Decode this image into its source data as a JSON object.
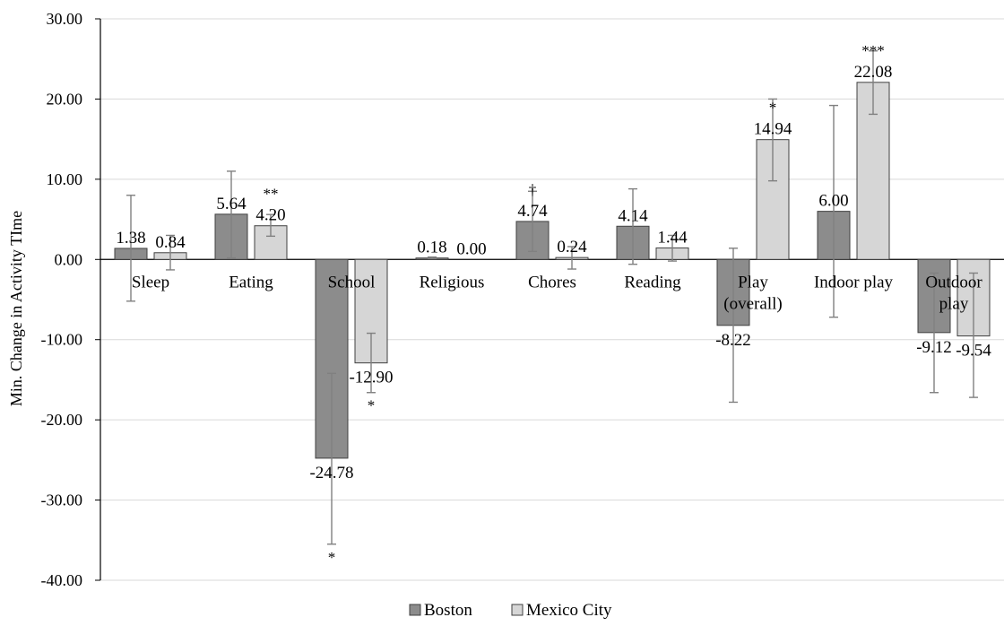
{
  "chart_data": {
    "type": "bar",
    "ylabel": "Min. Change in Activity TIme",
    "xlabel": "",
    "ylim": [
      -40,
      30
    ],
    "yticks": [
      "30.00",
      "20.00",
      "10.00",
      "0.00",
      "-10.00",
      "-20.00",
      "-30.00",
      "-40.00"
    ],
    "ytick_values": [
      30,
      20,
      10,
      0,
      -10,
      -20,
      -30,
      -40
    ],
    "grid": true,
    "legend_position": "bottom",
    "categories": [
      [
        "Sleep"
      ],
      [
        "Eating"
      ],
      [
        "School"
      ],
      [
        "Religious"
      ],
      [
        "Chores"
      ],
      [
        "Reading"
      ],
      [
        "Play",
        "(overall)"
      ],
      [
        "Indoor play"
      ],
      [
        "Outdoor",
        "play"
      ]
    ],
    "series": [
      {
        "name": "Boston",
        "color": "#8c8c8c",
        "values": [
          1.38,
          5.64,
          -24.78,
          0.18,
          4.74,
          4.14,
          -8.22,
          6.0,
          -9.12
        ],
        "labels": [
          "1.38",
          "5.64",
          "-24.78",
          "0.18",
          "4.74",
          "4.14",
          "-8.22",
          "6.00",
          "-9.12"
        ],
        "error_low": [
          -5.2,
          0.2,
          -35.5,
          0.1,
          1.0,
          -0.6,
          -17.8,
          -7.2,
          -16.6
        ],
        "error_high": [
          8.0,
          11.0,
          -14.2,
          0.3,
          8.5,
          8.8,
          1.4,
          19.2,
          -1.7
        ],
        "significance": [
          "",
          "",
          "*",
          "",
          "†",
          "",
          "",
          "",
          ""
        ]
      },
      {
        "name": "Mexico City",
        "color": "#d6d6d6",
        "values": [
          0.84,
          4.2,
          -12.9,
          0.0,
          0.24,
          1.44,
          14.94,
          22.08,
          -9.54
        ],
        "labels": [
          "0.84",
          "4.20",
          "-12.90",
          "0.00",
          "0.24",
          "1.44",
          "14.94",
          "22.08",
          "-9.54"
        ],
        "error_low": [
          -1.3,
          2.9,
          -16.6,
          0.0,
          -1.2,
          -0.2,
          9.8,
          18.1,
          -17.2
        ],
        "error_high": [
          3.0,
          5.6,
          -9.2,
          0.0,
          1.6,
          3.0,
          20.0,
          26.0,
          -1.7
        ],
        "significance": [
          "",
          "**",
          "*",
          "",
          "",
          "",
          "*",
          "***",
          ""
        ]
      }
    ]
  }
}
